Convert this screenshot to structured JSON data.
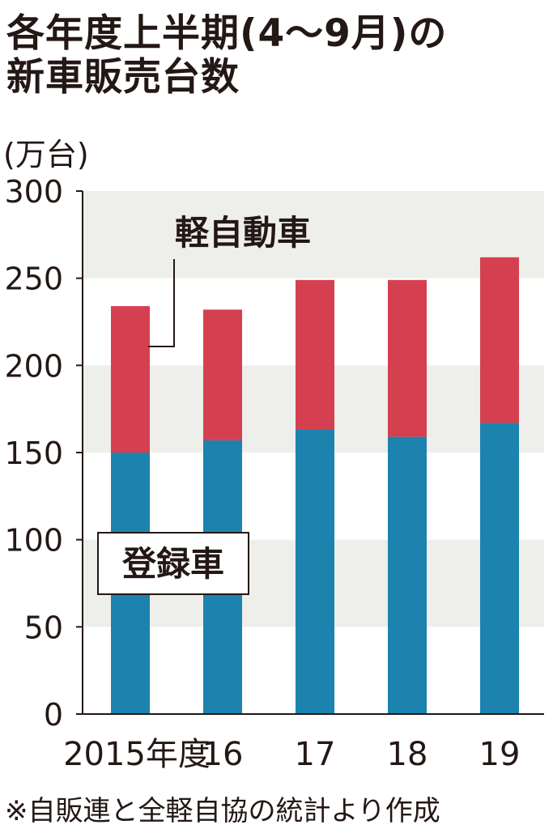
{
  "title_line1": "各年度上半期(4〜9月)の",
  "title_line2": "新車販売台数",
  "unit_label": "(万台)",
  "source_note": "※自販連と全軽自協の統計より作成",
  "chart_data": {
    "type": "bar",
    "stacked": true,
    "categories": [
      "2015年度",
      "16",
      "17",
      "18",
      "19"
    ],
    "series": [
      {
        "name": "登録車",
        "values": [
          150,
          157,
          163,
          159,
          167
        ],
        "color": "#1b83ad"
      },
      {
        "name": "軽自動車",
        "values": [
          84,
          75,
          86,
          90,
          95
        ],
        "color": "#d54050"
      }
    ],
    "totals": [
      234,
      232,
      249,
      249,
      262
    ],
    "ylim": [
      0,
      300
    ],
    "yticks": [
      0,
      50,
      100,
      150,
      200,
      250,
      300
    ],
    "grid": "alternating horizontal bands",
    "legend": "inline labels",
    "colors": {
      "band": "#eeeeea",
      "axis": "#231815"
    }
  }
}
